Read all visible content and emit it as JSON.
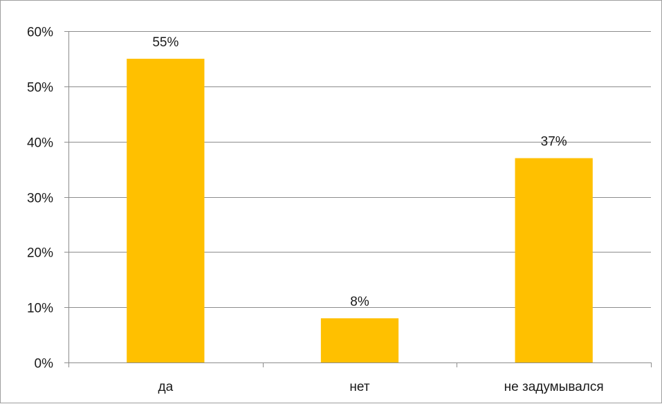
{
  "chart_data": {
    "type": "bar",
    "title": "",
    "xlabel": "",
    "ylabel": "",
    "categories": [
      "да",
      "нет",
      "не задумывался"
    ],
    "values": [
      55,
      8,
      37
    ],
    "data_labels": [
      "55%",
      "8%",
      "37%"
    ],
    "ylim": [
      0,
      60
    ],
    "yticks": [
      0,
      10,
      20,
      30,
      40,
      50,
      60
    ],
    "ytick_labels": [
      "0%",
      "10%",
      "20%",
      "30%",
      "40%",
      "50%",
      "60%"
    ],
    "grid": true,
    "legend": "none",
    "bar_color": "#FFC000",
    "grid_color": "#8C8C8C"
  }
}
